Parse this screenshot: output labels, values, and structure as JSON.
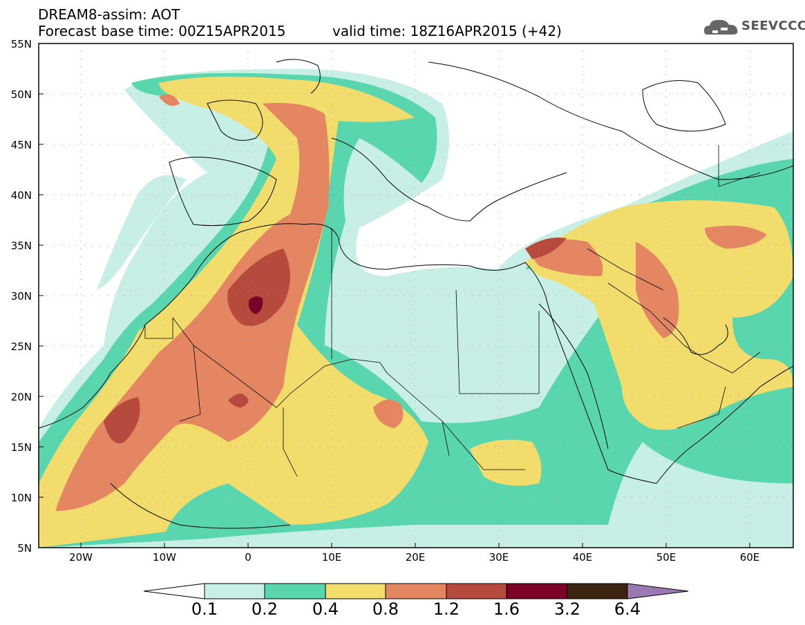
{
  "header": {
    "title": "DREAM8-assim: AOT",
    "base_time": "Forecast base time: 00Z15APR2015",
    "valid_time": "valid time: 18Z16APR2015 (+42)",
    "logo_text": "SEEVCCC"
  },
  "map": {
    "lat_labels": [
      "55N",
      "50N",
      "45N",
      "40N",
      "35N",
      "30N",
      "25N",
      "20N",
      "15N",
      "10N",
      "5N"
    ],
    "lon_labels": [
      "20W",
      "10W",
      "0",
      "10E",
      "20E",
      "30E",
      "40E",
      "50E",
      "60E"
    ],
    "grid": "dotted"
  },
  "colorbar": {
    "labels": [
      "0.1",
      "0.2",
      "0.4",
      "0.8",
      "1.2",
      "1.6",
      "3.2",
      "6.4"
    ],
    "colors": [
      "#ffffff",
      "#c8efe6",
      "#5ad6ae",
      "#f2dd6c",
      "#e58662",
      "#b54a3d",
      "#7c0027",
      "#3d2410",
      "#9a78b4"
    ]
  },
  "colors": {
    "c1": "#c8efe6",
    "c2": "#5ad6ae",
    "c3": "#f2dd6c",
    "c4": "#e58662",
    "c5": "#b54a3d",
    "c6": "#7c0027"
  }
}
